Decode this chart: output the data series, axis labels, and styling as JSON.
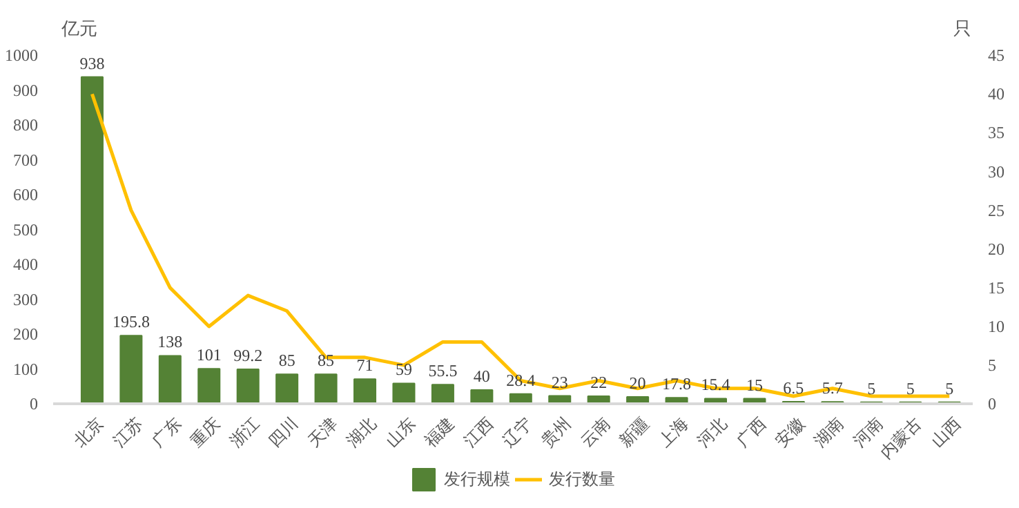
{
  "chart_data": {
    "type": "bar",
    "categories": [
      "北京",
      "江苏",
      "广东",
      "重庆",
      "浙江",
      "四川",
      "天津",
      "湖北",
      "山东",
      "福建",
      "江西",
      "辽宁",
      "贵州",
      "云南",
      "新疆",
      "上海",
      "河北",
      "广西",
      "安徽",
      "湖南",
      "河南",
      "内蒙古",
      "山西"
    ],
    "ylabel": "亿元",
    "y2label": "只",
    "ylim": [
      0,
      1000
    ],
    "yticks": [
      0,
      100,
      200,
      300,
      400,
      500,
      600,
      700,
      800,
      900,
      1000
    ],
    "y2lim": [
      0,
      45
    ],
    "y2ticks": [
      0,
      5,
      10,
      15,
      20,
      25,
      30,
      35,
      40,
      45
    ],
    "series": [
      {
        "name": "发行规模",
        "color": "#548235",
        "values": [
          938,
          195.8,
          138,
          101,
          99.2,
          85,
          85,
          71,
          59,
          55.5,
          40,
          28.4,
          23,
          22,
          20,
          17.8,
          15.4,
          15,
          6.5,
          5.7,
          5,
          5,
          5
        ],
        "value_labels": [
          "938",
          "195.8",
          "138",
          "101",
          "99.2",
          "85",
          "85",
          "71",
          "59",
          "55.5",
          "40",
          "28.4",
          "23",
          "22",
          "20",
          "17.8",
          "15.4",
          "15",
          "6.5",
          "5.7",
          "5",
          "5",
          "5"
        ]
      },
      {
        "name": "发行数量",
        "type": "line",
        "axis": "y2",
        "color": "#ffc000",
        "values": [
          40,
          25,
          15,
          10,
          14,
          12,
          6,
          6,
          5,
          8,
          8,
          3,
          2,
          3,
          2,
          3,
          2,
          2,
          1,
          2,
          1,
          1,
          1
        ]
      }
    ],
    "grid": false,
    "legend": "bottom"
  }
}
